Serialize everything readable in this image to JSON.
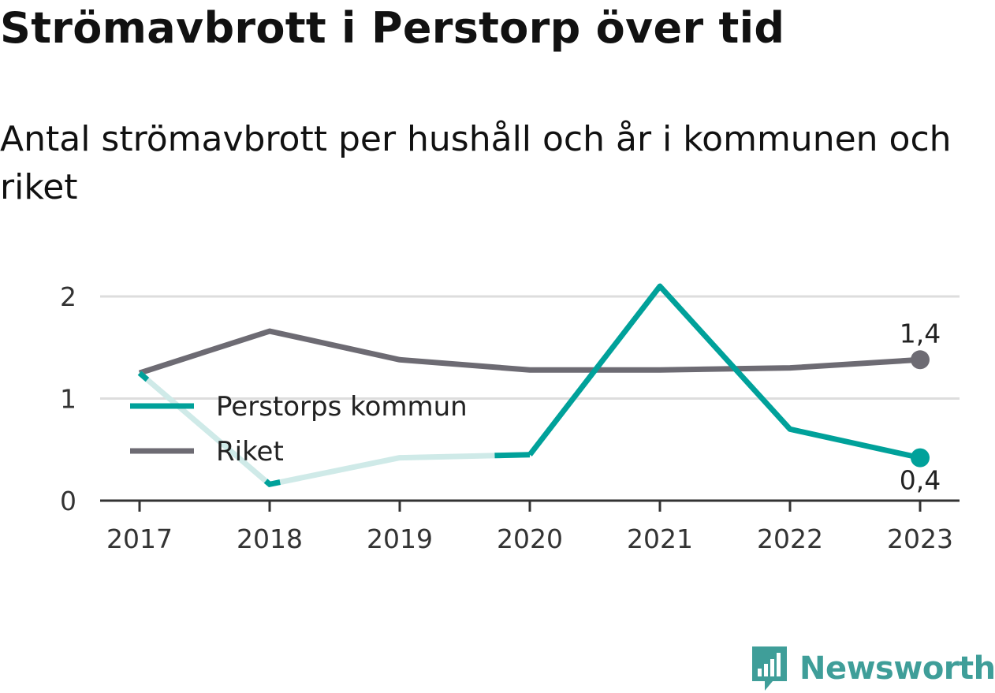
{
  "title": "Strömavbrott i Perstorp över tid",
  "subtitle": "Antal strömavbrott per hushåll och år i kommunen och riket",
  "brand": "Newsworthy",
  "colors": {
    "perstorp": "#00a19a",
    "perstorp_faded": "#cfeae8",
    "riket": "#6d6b73",
    "grid": "#dddddd",
    "axis": "#333333"
  },
  "chart_data": {
    "type": "line",
    "x": [
      "2017",
      "2018",
      "2019",
      "2020",
      "2021",
      "2022",
      "2023"
    ],
    "ylim": [
      0,
      2.2
    ],
    "yticks": [
      0,
      1,
      2
    ],
    "grid": true,
    "legend_position": "left",
    "series": [
      {
        "name": "Perstorps kommun",
        "values": [
          1.25,
          0.16,
          0.42,
          0.45,
          2.1,
          0.7,
          0.42
        ],
        "end_label": "0,4"
      },
      {
        "name": "Riket",
        "values": [
          1.25,
          1.66,
          1.38,
          1.28,
          1.28,
          1.3,
          1.38
        ],
        "end_label": "1,4"
      }
    ]
  }
}
